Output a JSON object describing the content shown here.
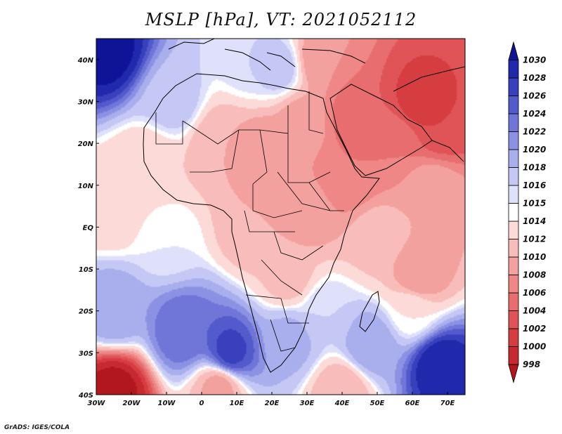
{
  "title": "MSLP [hPa], VT: 2021052112",
  "credit": "GrADS: IGES/COLA",
  "map": {
    "lon_range": [
      -30,
      75
    ],
    "lat_range": [
      -40,
      45
    ],
    "x_ticks": [
      {
        "lon": -30,
        "label": "30W"
      },
      {
        "lon": -20,
        "label": "20W"
      },
      {
        "lon": -10,
        "label": "10W"
      },
      {
        "lon": 0,
        "label": "0"
      },
      {
        "lon": 10,
        "label": "10E"
      },
      {
        "lon": 20,
        "label": "20E"
      },
      {
        "lon": 30,
        "label": "30E"
      },
      {
        "lon": 40,
        "label": "40E"
      },
      {
        "lon": 50,
        "label": "50E"
      },
      {
        "lon": 60,
        "label": "60E"
      },
      {
        "lon": 70,
        "label": "70E"
      }
    ],
    "y_ticks": [
      {
        "lat": 40,
        "label": "40N"
      },
      {
        "lat": 30,
        "label": "30N"
      },
      {
        "lat": 20,
        "label": "20N"
      },
      {
        "lat": 10,
        "label": "10N"
      },
      {
        "lat": 0,
        "label": "EQ"
      },
      {
        "lat": -10,
        "label": "10S"
      },
      {
        "lat": -20,
        "label": "20S"
      },
      {
        "lat": -30,
        "label": "30S"
      },
      {
        "lat": -40,
        "label": "40S"
      }
    ],
    "pressure_centers": [
      {
        "lon": -27,
        "lat": 42,
        "p": 1031
      },
      {
        "lon": -8,
        "lat": 30,
        "p": 1017
      },
      {
        "lon": 14,
        "lat": 40,
        "p": 1016
      },
      {
        "lon": 22,
        "lat": 38,
        "p": 1017
      },
      {
        "lon": 34,
        "lat": 40,
        "p": 1008
      },
      {
        "lon": 45,
        "lat": 27,
        "p": 1004
      },
      {
        "lon": 62,
        "lat": 30,
        "p": 1001
      },
      {
        "lon": 68,
        "lat": 25,
        "p": 1002
      },
      {
        "lon": 55,
        "lat": 20,
        "p": 1006
      },
      {
        "lon": 42,
        "lat": 12,
        "p": 1006
      },
      {
        "lon": 18,
        "lat": 18,
        "p": 1008
      },
      {
        "lon": 28,
        "lat": 25,
        "p": 1009
      },
      {
        "lon": 5,
        "lat": 20,
        "p": 1010
      },
      {
        "lon": -15,
        "lat": 15,
        "p": 1012
      },
      {
        "lon": 30,
        "lat": 3,
        "p": 1009
      },
      {
        "lon": 15,
        "lat": 0,
        "p": 1010
      },
      {
        "lon": 25,
        "lat": -12,
        "p": 1011
      },
      {
        "lon": 35,
        "lat": -20,
        "p": 1016
      },
      {
        "lon": 25,
        "lat": -27,
        "p": 1019
      },
      {
        "lon": 62,
        "lat": -12,
        "p": 1008
      },
      {
        "lon": 50,
        "lat": -2,
        "p": 1011
      },
      {
        "lon": 65,
        "lat": 8,
        "p": 1010
      },
      {
        "lon": -25,
        "lat": 5,
        "p": 1012
      },
      {
        "lon": -10,
        "lat": -3,
        "p": 1015
      },
      {
        "lon": -25,
        "lat": -20,
        "p": 1020
      },
      {
        "lon": -5,
        "lat": -25,
        "p": 1024
      },
      {
        "lon": 8,
        "lat": -30,
        "p": 1027
      },
      {
        "lon": -25,
        "lat": -39,
        "p": 997
      },
      {
        "lon": 5,
        "lat": -38,
        "p": 1009
      },
      {
        "lon": 40,
        "lat": -39,
        "p": 1010
      },
      {
        "lon": 48,
        "lat": -28,
        "p": 1020
      },
      {
        "lon": 68,
        "lat": -33,
        "p": 1030
      },
      {
        "lon": 60,
        "lat": -20,
        "p": 1014
      }
    ]
  },
  "colorbar": {
    "levels": [
      "998",
      "1000",
      "1002",
      "1004",
      "1006",
      "1008",
      "1010",
      "1012",
      "1014",
      "1015",
      "1016",
      "1018",
      "1020",
      "1022",
      "1024",
      "1026",
      "1028",
      "1030"
    ],
    "colors": [
      "#b2171e",
      "#c72930",
      "#d63d41",
      "#e05457",
      "#e76d6e",
      "#ee8785",
      "#f3a19e",
      "#f8bdba",
      "#fcdad8",
      "#ffffff",
      "#dfe1fb",
      "#c5c8f4",
      "#a9aeec",
      "#8c92e3",
      "#6f76d8",
      "#535bcc",
      "#3840bd",
      "#2028ab",
      "#0f1496"
    ]
  }
}
